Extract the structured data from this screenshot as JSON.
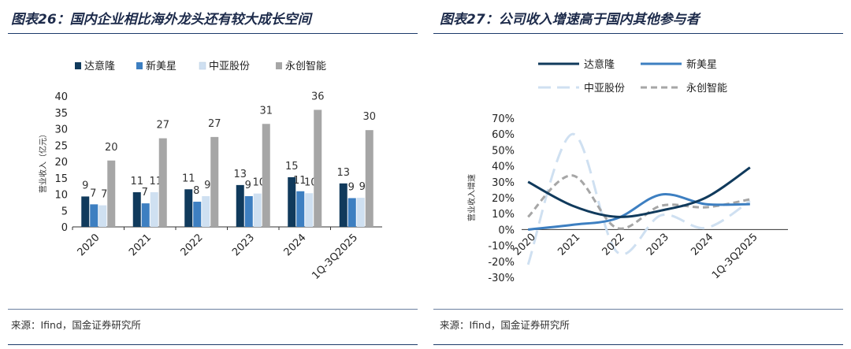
{
  "left_panel": {
    "title": "图表26：国内企业相比海外龙头还有较大成长空间",
    "source": "来源：Ifind，国金证券研究所"
  },
  "right_panel": {
    "title": "图表27：公司收入增速高于国内其他参与者",
    "source": "来源：Ifind，国金证券研究所"
  },
  "colors": {
    "daiyilong": "#103a5c",
    "xinmeixing": "#3d7fc1",
    "zhongya": "#cfe0f1",
    "yongchuang": "#a6a6a6",
    "title": "#1c2a4a"
  },
  "chart_data": [
    {
      "type": "bar",
      "xlabel": "",
      "ylabel": "营业收入（亿元）",
      "ylim": [
        0,
        40
      ],
      "yticks": [
        0,
        5,
        10,
        15,
        20,
        25,
        30,
        35,
        40
      ],
      "categories": [
        "2020",
        "2021",
        "2022",
        "2023",
        "2024",
        "1Q-3Q2025"
      ],
      "legend_position": "top",
      "series": [
        {
          "name": "达意隆",
          "values": [
            9.3,
            10.6,
            11.5,
            12.8,
            15.2,
            13.3
          ],
          "labels": [
            "9",
            "11",
            "11",
            "13",
            "15",
            "13"
          ]
        },
        {
          "name": "新美星",
          "values": [
            6.9,
            7.2,
            7.7,
            9.4,
            10.9,
            8.8
          ],
          "labels": [
            "7",
            "7",
            "8",
            "9",
            "11",
            "9"
          ]
        },
        {
          "name": "中亚股份",
          "values": [
            6.6,
            10.6,
            9.4,
            10.2,
            10.3,
            8.9
          ],
          "labels": [
            "7",
            "11",
            "9",
            "10",
            "10",
            "9"
          ]
        },
        {
          "name": "永创智能",
          "values": [
            20.3,
            27.1,
            27.5,
            31.5,
            35.8,
            29.6
          ],
          "labels": [
            "20",
            "27",
            "27",
            "31",
            "36",
            "30"
          ]
        }
      ]
    },
    {
      "type": "line",
      "xlabel": "",
      "ylabel": "营业收入增速",
      "ylim": [
        -30,
        70
      ],
      "yticks": [
        -30,
        -20,
        -10,
        0,
        10,
        20,
        30,
        40,
        50,
        60,
        70
      ],
      "ytick_suffix": "%",
      "categories": [
        "2020",
        "2021",
        "2022",
        "2023",
        "2024",
        "1Q-3Q2025"
      ],
      "legend_position": "top",
      "series": [
        {
          "name": "达意隆",
          "values": [
            30,
            15,
            8,
            12,
            20,
            39
          ],
          "style": "solid"
        },
        {
          "name": "新美星",
          "values": [
            0,
            3,
            7,
            22,
            16,
            16
          ],
          "style": "solid"
        },
        {
          "name": "中亚股份",
          "values": [
            -22,
            60,
            -14,
            9,
            1,
            18
          ],
          "style": "longdash"
        },
        {
          "name": "永创智能",
          "values": [
            8,
            34,
            1,
            15,
            14,
            19
          ],
          "style": "dash"
        }
      ]
    }
  ]
}
